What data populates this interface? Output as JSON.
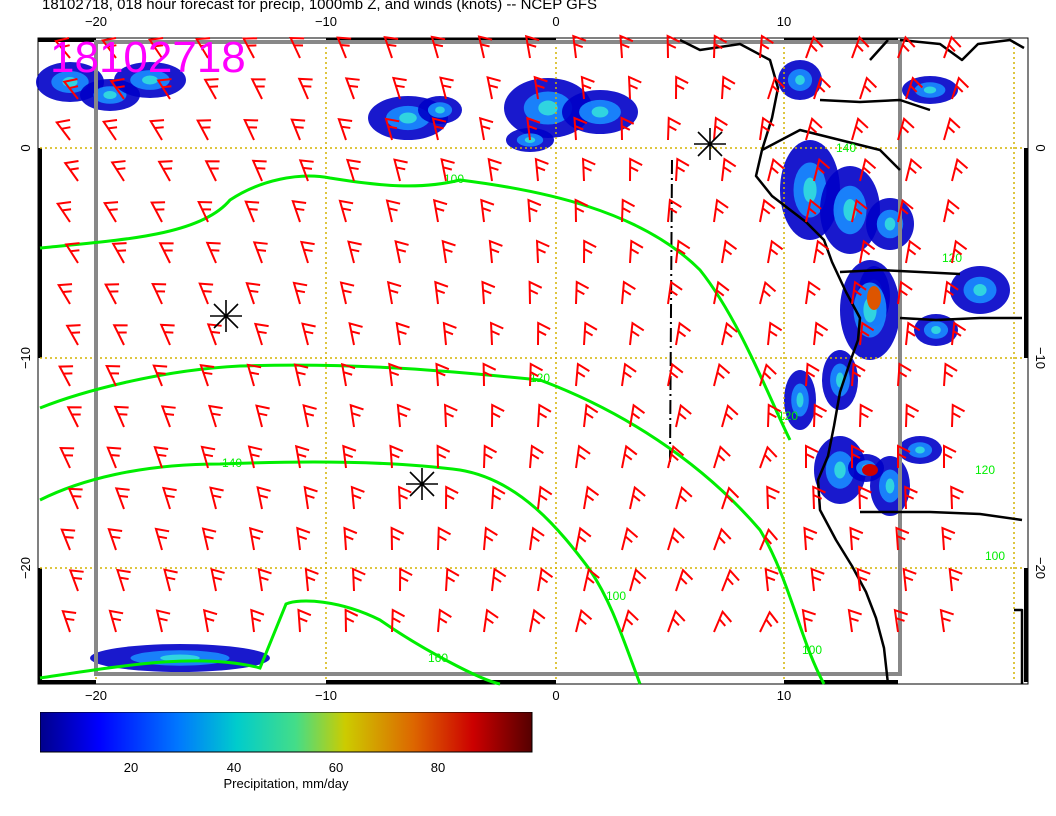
{
  "title": "18102718, 018 hour forecast for precip, 1000mb Z, and winds (knots) -- NCEP GFS",
  "stamp": "18102718",
  "axes": {
    "lon_ticks_top": [
      "−20",
      "−10",
      "0",
      "10"
    ],
    "lon_ticks_bottom": [
      "−20",
      "−10",
      "0",
      "10"
    ],
    "lat_ticks_left": [
      "0",
      "−10",
      "−20"
    ],
    "lat_ticks_right": [
      "0",
      "−10",
      "−20"
    ]
  },
  "contours": {
    "color": "#00ee00",
    "labels": [
      "100",
      "120",
      "140",
      "160",
      "100",
      "120",
      "100",
      "120",
      "100",
      "120",
      "140"
    ]
  },
  "markers": {
    "symbol": "asterisk",
    "count": 3
  },
  "wind_barbs": {
    "color": "#ff0000"
  },
  "colorbar": {
    "ticks": [
      "20",
      "40",
      "60",
      "80"
    ],
    "label": "Precipitation, mm/day",
    "colors": [
      "#00008b",
      "#0000ff",
      "#0077ff",
      "#00cccc",
      "#44dd88",
      "#cccc00",
      "#dd6600",
      "#cc0000",
      "#550000"
    ]
  },
  "colors": {
    "stamp": "#ff00ff",
    "coast": "#000000",
    "grid": "#d4b400",
    "frame": "#888888"
  }
}
